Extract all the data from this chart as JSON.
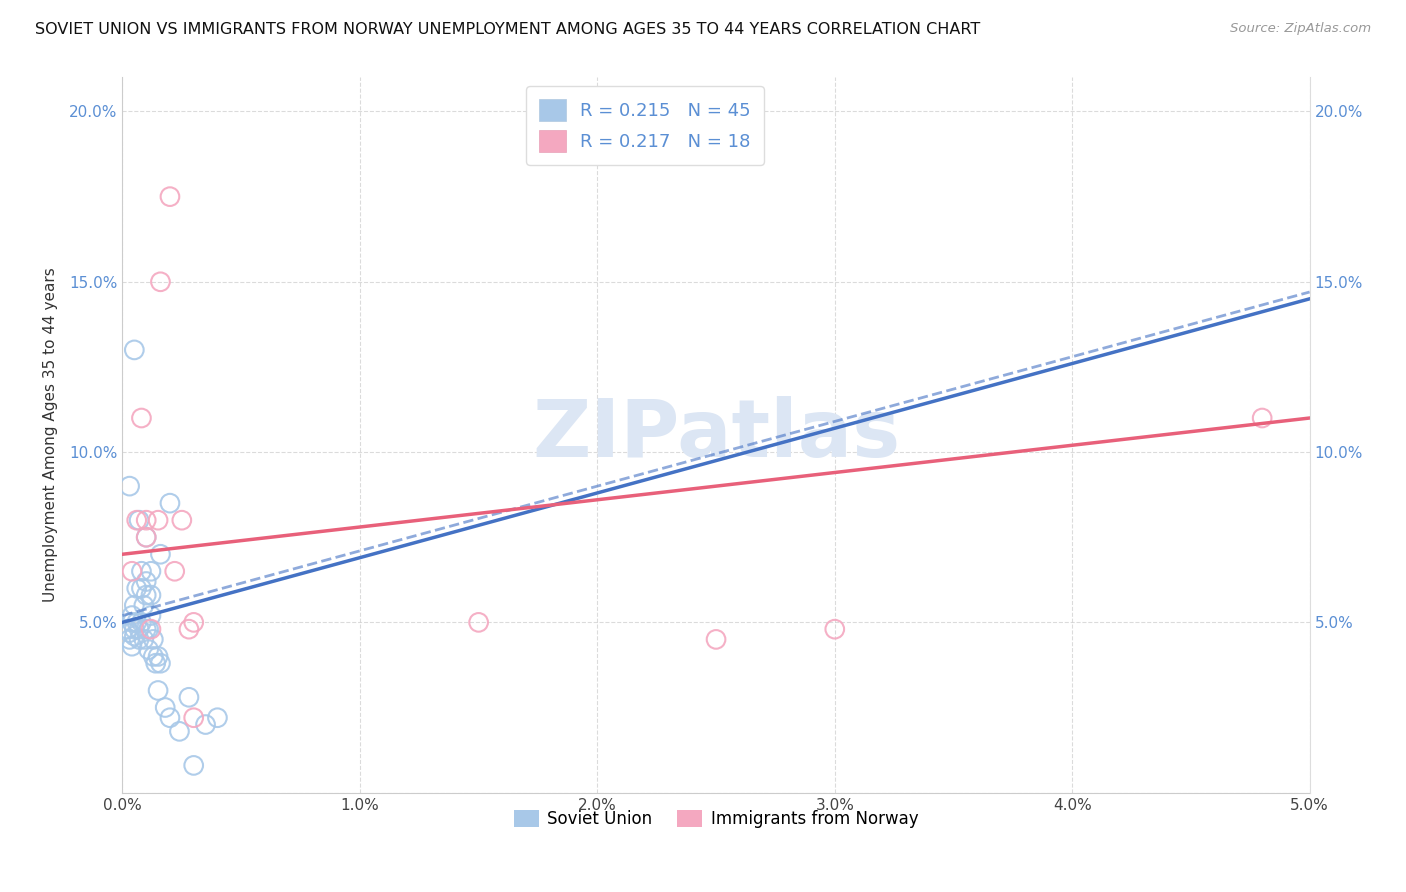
{
  "title": "SOVIET UNION VS IMMIGRANTS FROM NORWAY UNEMPLOYMENT AMONG AGES 35 TO 44 YEARS CORRELATION CHART",
  "source": "Source: ZipAtlas.com",
  "ylabel": "Unemployment Among Ages 35 to 44 years",
  "xlim": [
    0.0,
    0.05
  ],
  "ylim": [
    0.0,
    0.21
  ],
  "xticks": [
    0.0,
    0.01,
    0.02,
    0.03,
    0.04,
    0.05
  ],
  "yticks": [
    0.0,
    0.05,
    0.1,
    0.15,
    0.2
  ],
  "r1": 0.215,
  "n1": 45,
  "r2": 0.217,
  "n2": 18,
  "blue_scatter_color": "#a8c8e8",
  "pink_scatter_color": "#f4a8c0",
  "blue_line_color": "#4472c4",
  "pink_line_color": "#e8607a",
  "axis_tick_color": "#5b8fd4",
  "watermark": "ZIPatlas",
  "watermark_color": "#dce6f4",
  "legend1_label": "Soviet Union",
  "legend2_label": "Immigrants from Norway",
  "soviet_x": [
    0.0002,
    0.0003,
    0.0003,
    0.0004,
    0.0004,
    0.0005,
    0.0005,
    0.0005,
    0.0006,
    0.0006,
    0.0007,
    0.0007,
    0.0008,
    0.0008,
    0.0008,
    0.0009,
    0.0009,
    0.001,
    0.001,
    0.001,
    0.0011,
    0.0011,
    0.0012,
    0.0012,
    0.0013,
    0.0013,
    0.0014,
    0.0014,
    0.0015,
    0.0016,
    0.0017,
    0.0018,
    0.0019,
    0.002,
    0.0022,
    0.0024,
    0.0005,
    0.0007,
    0.0009,
    0.0012,
    0.0015,
    0.0018,
    0.002,
    0.0025,
    0.003
  ],
  "soviet_y": [
    0.05,
    0.048,
    0.045,
    0.052,
    0.043,
    0.048,
    0.046,
    0.055,
    0.05,
    0.06,
    0.045,
    0.048,
    0.06,
    0.05,
    0.065,
    0.045,
    0.055,
    0.062,
    0.048,
    0.058,
    0.048,
    0.042,
    0.052,
    0.058,
    0.04,
    0.045,
    0.038,
    0.042,
    0.04,
    0.038,
    0.035,
    0.032,
    0.028,
    0.025,
    0.022,
    0.018,
    0.09,
    0.13,
    0.08,
    0.075,
    0.065,
    0.07,
    0.085,
    0.03,
    0.008
  ],
  "norway_x": [
    0.0004,
    0.0005,
    0.0006,
    0.0007,
    0.0008,
    0.0009,
    0.001,
    0.0011,
    0.0012,
    0.0013,
    0.0014,
    0.0015,
    0.0016,
    0.002,
    0.0025,
    0.003,
    0.0035,
    0.048
  ],
  "norway_y": [
    0.06,
    0.05,
    0.065,
    0.068,
    0.052,
    0.075,
    0.072,
    0.048,
    0.058,
    0.11,
    0.08,
    0.08,
    0.048,
    0.065,
    0.05,
    0.045,
    0.018,
    0.11
  ]
}
